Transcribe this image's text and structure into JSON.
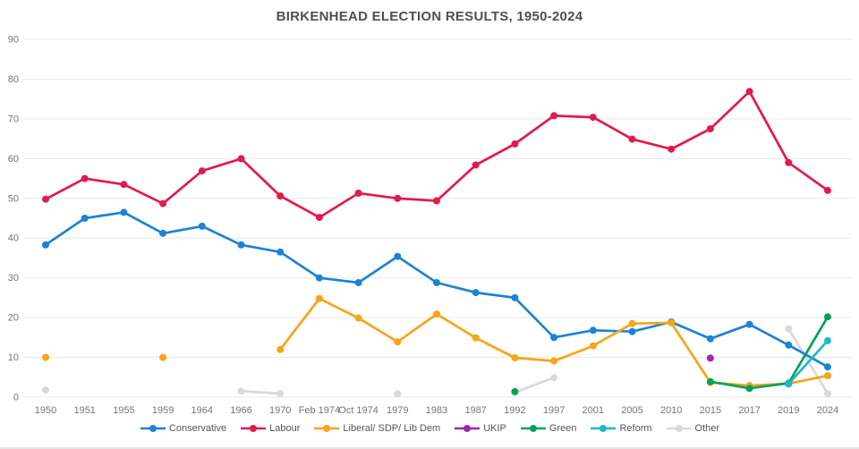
{
  "title": "BIRKENHEAD ELECTION RESULTS, 1950-2024",
  "colors": {
    "background": "#ffffff",
    "grid": "#e9e9e9",
    "axis_text": "#757575",
    "title_text": "#4f4f4f",
    "legend_text": "#555555"
  },
  "chart_data": {
    "type": "line",
    "title": "BIRKENHEAD ELECTION RESULTS, 1950-2024",
    "xlabel": "",
    "ylabel": "",
    "ylim": [
      0,
      90
    ],
    "yticks": [
      0,
      10,
      20,
      30,
      40,
      50,
      60,
      70,
      80,
      90
    ],
    "grid": true,
    "legend_position": "bottom",
    "categories": [
      "1950",
      "1951",
      "1955",
      "1959",
      "1964",
      "1966",
      "1970",
      "Feb 1974",
      "Oct 1974",
      "1979",
      "1983",
      "1987",
      "1992",
      "1997",
      "2001",
      "2005",
      "2010",
      "2015",
      "2017",
      "2019",
      "2024"
    ],
    "series": [
      {
        "name": "Conservative",
        "color": "#1c83d5",
        "values": [
          38.3,
          45.0,
          46.5,
          41.2,
          43.0,
          38.3,
          36.5,
          30.0,
          28.8,
          35.4,
          28.8,
          26.3,
          25.0,
          15.0,
          16.8,
          16.5,
          18.9,
          14.7,
          18.3,
          13.1,
          7.6
        ]
      },
      {
        "name": "Labour",
        "color": "#e31a4c",
        "values": [
          49.8,
          55.0,
          53.5,
          48.7,
          56.9,
          60.0,
          50.6,
          45.2,
          51.3,
          50.0,
          49.4,
          58.4,
          63.7,
          70.8,
          70.4,
          64.9,
          62.4,
          67.5,
          76.9,
          59.0,
          52.0
        ]
      },
      {
        "name": "Liberal/ SDP/ Lib Dem",
        "color": "#f7a519",
        "values": [
          10.0,
          null,
          null,
          10.0,
          null,
          null,
          12.0,
          24.8,
          19.9,
          13.9,
          20.9,
          14.9,
          9.9,
          9.1,
          12.9,
          18.5,
          18.7,
          3.7,
          2.9,
          3.4,
          5.4
        ]
      },
      {
        "name": "UKIP",
        "color": "#9b27af",
        "values": [
          null,
          null,
          null,
          null,
          null,
          null,
          null,
          null,
          null,
          null,
          null,
          null,
          null,
          null,
          null,
          null,
          null,
          9.8,
          null,
          null,
          null
        ]
      },
      {
        "name": "Green",
        "color": "#00a35a",
        "values": [
          null,
          null,
          null,
          null,
          null,
          null,
          null,
          null,
          null,
          null,
          null,
          null,
          1.4,
          null,
          null,
          null,
          null,
          3.9,
          2.2,
          3.5,
          20.2
        ]
      },
      {
        "name": "Reform",
        "color": "#1fb7cd",
        "values": [
          null,
          null,
          null,
          null,
          null,
          null,
          null,
          null,
          null,
          null,
          null,
          null,
          null,
          null,
          null,
          null,
          null,
          null,
          null,
          3.3,
          14.2
        ]
      },
      {
        "name": "Other",
        "color": "#d9d9d9",
        "values": [
          1.8,
          null,
          null,
          null,
          null,
          1.5,
          0.9,
          null,
          null,
          0.8,
          null,
          null,
          1.2,
          4.9,
          null,
          null,
          null,
          null,
          null,
          17.2,
          0.9
        ]
      }
    ]
  },
  "legend": {
    "items": [
      "Conservative",
      "Labour",
      "Liberal/ SDP/ Lib Dem",
      "UKIP",
      "Green",
      "Reform",
      "Other"
    ]
  }
}
